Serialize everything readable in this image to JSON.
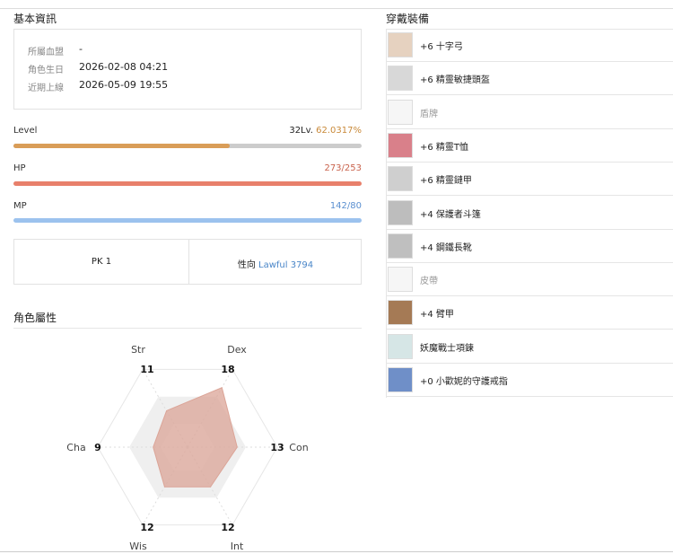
{
  "basic_info": {
    "title": "基本資訊",
    "rows": [
      {
        "label": "所屬血盟",
        "value": "-"
      },
      {
        "label": "角色生日",
        "value": "2026-02-08 04:21"
      },
      {
        "label": "近期上線",
        "value": "2026-05-09 19:55"
      }
    ]
  },
  "level": {
    "label": "Level",
    "level": "32Lv.",
    "progress": 62.0317,
    "progress_label": "62.0317%"
  },
  "hp": {
    "label": "HP",
    "value": "273/253"
  },
  "mp": {
    "label": "MP",
    "value": "142/80"
  },
  "pk": "PK 1",
  "alignment": {
    "label": "性向",
    "value": "Lawful 3794"
  },
  "attributes_title": "角色屬性",
  "chart_data": {
    "type": "radar",
    "categories": [
      "Str",
      "Dex",
      "Con",
      "Int",
      "Wis",
      "Cha"
    ],
    "values": [
      11,
      18,
      13,
      12,
      12,
      9
    ],
    "rlim": [
      0,
      23.5
    ],
    "color": "#dba497"
  },
  "equipment": {
    "title": "穿戴裝備",
    "items": [
      "+6 十字弓",
      "+6 精靈敏捷頭盔",
      "盾牌",
      "+6 精靈T恤",
      "+6 精靈鏈甲",
      "+4 保護者斗篷",
      "+4 鋼鐵長靴",
      "皮帶",
      "+4 臂甲",
      "妖魔戰士項鍊",
      "+0 小歡妮的守護戒指"
    ]
  }
}
